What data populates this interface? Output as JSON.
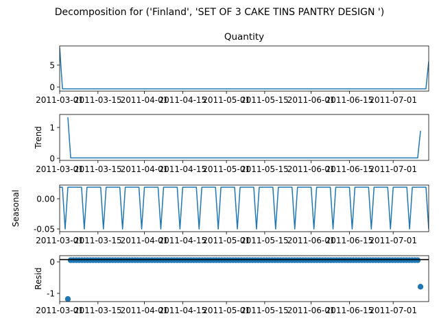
{
  "figure_title": "Decomposition for ('Finland', 'SET OF 3 CAKE TINS PANTRY DESIGN ')",
  "x_tick_labels": [
    "2011-03-01",
    "2011-03-15",
    "2011-04-01",
    "2011-04-15",
    "2011-05-01",
    "2011-05-15",
    "2011-06-01",
    "2011-06-15",
    "2011-07-01"
  ],
  "colors": {
    "line": "#1f77b4",
    "axis": "#000000",
    "background": "#ffffff"
  },
  "chart_data": [
    {
      "type": "line",
      "title": "Quantity",
      "ylabel": "",
      "yticks": [
        "0",
        "5"
      ],
      "ylim": [
        -0.5,
        9.4
      ],
      "xlim": [
        "2011-03-01",
        "2011-07-14"
      ],
      "x_start": "2011-03-01",
      "x_end": "2011-07-14",
      "values": [
        9,
        0,
        0,
        0,
        0,
        0,
        0,
        0,
        0,
        0,
        0,
        0,
        0,
        0,
        0,
        0,
        0,
        0,
        0,
        0,
        0,
        0,
        0,
        0,
        0,
        0,
        0,
        0,
        0,
        0,
        0,
        0,
        0,
        0,
        0,
        0,
        0,
        0,
        0,
        0,
        0,
        0,
        0,
        0,
        0,
        0,
        0,
        0,
        0,
        0,
        0,
        0,
        0,
        0,
        0,
        0,
        0,
        0,
        0,
        0,
        0,
        0,
        0,
        0,
        0,
        0,
        0,
        0,
        0,
        0,
        0,
        0,
        0,
        0,
        0,
        0,
        0,
        0,
        0,
        0,
        0,
        0,
        0,
        0,
        0,
        0,
        0,
        0,
        0,
        0,
        0,
        0,
        0,
        0,
        0,
        0,
        0,
        0,
        0,
        0,
        0,
        0,
        0,
        0,
        0,
        0,
        0,
        0,
        0,
        0,
        0,
        0,
        0,
        0,
        0,
        0,
        0,
        0,
        0,
        0,
        0,
        0,
        0,
        0,
        0,
        0,
        0,
        0,
        0,
        0,
        0,
        0,
        6
      ]
    },
    {
      "type": "line",
      "title": "",
      "ylabel": "Trend",
      "yticks": [
        "0",
        "1"
      ],
      "ylim": [
        -0.08,
        1.38
      ],
      "xlim": [
        "2011-03-01",
        "2011-07-14"
      ],
      "x_start": "2011-03-04",
      "x_end": "2011-07-11",
      "values": [
        1.29,
        0,
        0,
        0,
        0,
        0,
        0,
        0,
        0,
        0,
        0,
        0,
        0,
        0,
        0,
        0,
        0,
        0,
        0,
        0,
        0,
        0,
        0,
        0,
        0,
        0,
        0,
        0,
        0,
        0,
        0,
        0,
        0,
        0,
        0,
        0,
        0,
        0,
        0,
        0,
        0,
        0,
        0,
        0,
        0,
        0,
        0,
        0,
        0,
        0,
        0,
        0,
        0,
        0,
        0,
        0,
        0,
        0,
        0,
        0,
        0,
        0,
        0,
        0,
        0,
        0,
        0,
        0,
        0,
        0,
        0,
        0,
        0,
        0,
        0,
        0,
        0,
        0,
        0,
        0,
        0,
        0,
        0,
        0,
        0,
        0,
        0,
        0,
        0,
        0,
        0,
        0,
        0,
        0,
        0,
        0,
        0,
        0,
        0,
        0,
        0,
        0,
        0,
        0,
        0,
        0,
        0,
        0,
        0,
        0,
        0,
        0,
        0,
        0,
        0,
        0,
        0,
        0,
        0,
        0,
        0,
        0,
        0,
        0,
        0,
        0,
        0.86
      ]
    },
    {
      "type": "line",
      "title": "",
      "ylabel": "Seasonal",
      "yticks": [
        "0.00",
        "-0.05"
      ],
      "ylim": [
        -0.056,
        0.022
      ],
      "xlim": [
        "2011-03-01",
        "2011-07-14"
      ],
      "x_start": "2011-03-01",
      "x_end": "2011-07-14",
      "period_pattern": [
        0.0184,
        0.0184,
        -0.0515,
        0.0184,
        0.0184,
        0.0184,
        0.0184
      ],
      "pattern_offset": 0
    },
    {
      "type": "scatter",
      "title": "",
      "ylabel": "Resid",
      "yticks": [
        "0",
        "-1"
      ],
      "ylim": [
        -1.3,
        0.12
      ],
      "xlim": [
        "2011-03-01",
        "2011-07-14"
      ],
      "x_start": "2011-03-04",
      "x_end": "2011-07-11",
      "baseline": 0,
      "values": [
        -1.22,
        -0.02,
        -0.02,
        -0.02,
        -0.02,
        -0.02,
        -0.02,
        -0.02,
        -0.02,
        -0.02,
        -0.02,
        -0.02,
        -0.02,
        -0.02,
        -0.02,
        -0.02,
        -0.02,
        -0.02,
        -0.02,
        -0.02,
        -0.02,
        -0.02,
        -0.02,
        -0.02,
        -0.02,
        -0.02,
        -0.02,
        -0.02,
        -0.02,
        -0.02,
        -0.02,
        -0.02,
        -0.02,
        -0.02,
        -0.02,
        -0.02,
        -0.02,
        -0.02,
        -0.02,
        -0.02,
        -0.02,
        -0.02,
        -0.02,
        -0.02,
        -0.02,
        -0.02,
        -0.02,
        -0.02,
        -0.02,
        -0.02,
        -0.02,
        -0.02,
        -0.02,
        -0.02,
        -0.02,
        -0.02,
        -0.02,
        -0.02,
        -0.02,
        -0.02,
        -0.02,
        -0.02,
        -0.02,
        -0.02,
        -0.02,
        -0.02,
        -0.02,
        -0.02,
        -0.02,
        -0.02,
        -0.02,
        -0.02,
        -0.02,
        -0.02,
        -0.02,
        -0.02,
        -0.02,
        -0.02,
        -0.02,
        -0.02,
        -0.02,
        -0.02,
        -0.02,
        -0.02,
        -0.02,
        -0.02,
        -0.02,
        -0.02,
        -0.02,
        -0.02,
        -0.02,
        -0.02,
        -0.02,
        -0.02,
        -0.02,
        -0.02,
        -0.02,
        -0.02,
        -0.02,
        -0.02,
        -0.02,
        -0.02,
        -0.02,
        -0.02,
        -0.02,
        -0.02,
        -0.02,
        -0.02,
        -0.02,
        -0.02,
        -0.02,
        -0.02,
        -0.02,
        -0.02,
        -0.02,
        -0.02,
        -0.02,
        -0.02,
        -0.02,
        -0.02,
        -0.02,
        -0.02,
        -0.02,
        -0.02,
        -0.02,
        -0.02,
        -0.84
      ]
    }
  ]
}
